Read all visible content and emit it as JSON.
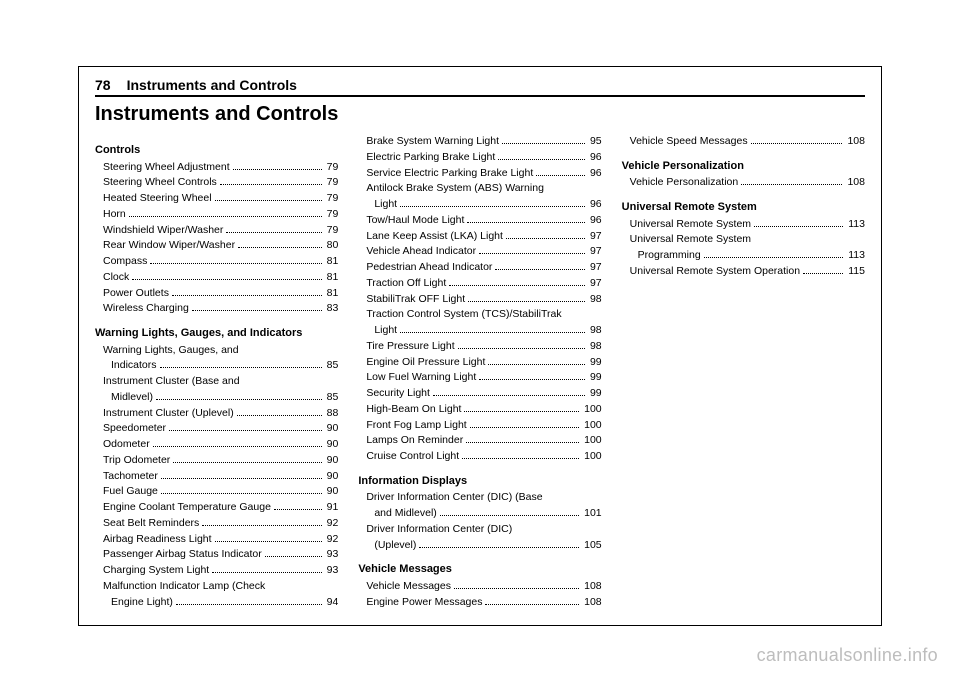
{
  "page_number": "78",
  "header_title": "Instruments and Controls",
  "chapter_title": "Instruments and Controls",
  "watermark": "carmanualsonline.info",
  "colors": {
    "text": "#000000",
    "bg": "#ffffff",
    "watermark": "#bdbdbd"
  },
  "sections": [
    {
      "head": "Controls",
      "items": [
        {
          "label": [
            "Steering Wheel Adjustment"
          ],
          "page": "79"
        },
        {
          "label": [
            "Steering Wheel Controls"
          ],
          "page": "79"
        },
        {
          "label": [
            "Heated Steering Wheel"
          ],
          "page": "79"
        },
        {
          "label": [
            "Horn"
          ],
          "page": "79"
        },
        {
          "label": [
            "Windshield Wiper/Washer"
          ],
          "page": "79"
        },
        {
          "label": [
            "Rear Window Wiper/Washer"
          ],
          "page": "80"
        },
        {
          "label": [
            "Compass"
          ],
          "page": "81"
        },
        {
          "label": [
            "Clock"
          ],
          "page": "81"
        },
        {
          "label": [
            "Power Outlets"
          ],
          "page": "81"
        },
        {
          "label": [
            "Wireless Charging"
          ],
          "page": "83"
        }
      ]
    },
    {
      "head": "Warning Lights, Gauges, and Indicators",
      "items": [
        {
          "label": [
            "Warning Lights, Gauges, and",
            "Indicators"
          ],
          "page": "85"
        },
        {
          "label": [
            "Instrument Cluster (Base and",
            "Midlevel)"
          ],
          "page": "85"
        },
        {
          "label": [
            "Instrument Cluster (Uplevel)"
          ],
          "page": "88"
        },
        {
          "label": [
            "Speedometer"
          ],
          "page": "90"
        },
        {
          "label": [
            "Odometer"
          ],
          "page": "90"
        },
        {
          "label": [
            "Trip Odometer"
          ],
          "page": "90"
        },
        {
          "label": [
            "Tachometer"
          ],
          "page": "90"
        },
        {
          "label": [
            "Fuel Gauge"
          ],
          "page": "90"
        },
        {
          "label": [
            "Engine Coolant Temperature Gauge"
          ],
          "page": "91"
        },
        {
          "label": [
            "Seat Belt Reminders"
          ],
          "page": "92"
        },
        {
          "label": [
            "Airbag Readiness Light"
          ],
          "page": "92"
        },
        {
          "label": [
            "Passenger Airbag Status Indicator"
          ],
          "page": "93"
        },
        {
          "label": [
            "Charging System Light"
          ],
          "page": "93"
        },
        {
          "label": [
            "Malfunction Indicator Lamp (Check",
            "Engine Light)"
          ],
          "page": "94"
        },
        {
          "label": [
            "Brake System Warning Light"
          ],
          "page": "95"
        },
        {
          "label": [
            "Electric Parking Brake Light"
          ],
          "page": "96"
        },
        {
          "label": [
            "Service Electric Parking Brake Light"
          ],
          "page": "96"
        },
        {
          "label": [
            "Antilock Brake System (ABS) Warning",
            "Light"
          ],
          "page": "96"
        },
        {
          "label": [
            "Tow/Haul Mode Light"
          ],
          "page": "96"
        },
        {
          "label": [
            "Lane Keep Assist (LKA) Light"
          ],
          "page": "97"
        },
        {
          "label": [
            "Vehicle Ahead Indicator"
          ],
          "page": "97"
        },
        {
          "label": [
            "Pedestrian Ahead Indicator"
          ],
          "page": "97"
        },
        {
          "label": [
            "Traction Off Light"
          ],
          "page": "97"
        },
        {
          "label": [
            "StabiliTrak OFF Light"
          ],
          "page": "98"
        },
        {
          "label": [
            "Traction Control System (TCS)/StabiliTrak",
            "Light"
          ],
          "page": "98"
        },
        {
          "label": [
            "Tire Pressure Light"
          ],
          "page": "98"
        },
        {
          "label": [
            "Engine Oil Pressure Light"
          ],
          "page": "99"
        },
        {
          "label": [
            "Low Fuel Warning Light"
          ],
          "page": "99"
        },
        {
          "label": [
            "Security Light"
          ],
          "page": "99"
        },
        {
          "label": [
            "High-Beam On Light"
          ],
          "page": "100"
        },
        {
          "label": [
            "Front Fog Lamp Light"
          ],
          "page": "100"
        },
        {
          "label": [
            "Lamps On Reminder"
          ],
          "page": "100"
        },
        {
          "label": [
            "Cruise Control Light"
          ],
          "page": "100"
        }
      ]
    },
    {
      "head": "Information Displays",
      "items": [
        {
          "label": [
            "Driver Information Center (DIC) (Base",
            "and Midlevel)"
          ],
          "page": "101"
        },
        {
          "label": [
            "Driver Information Center (DIC)",
            "(Uplevel)"
          ],
          "page": "105"
        }
      ]
    },
    {
      "head": "Vehicle Messages",
      "items": [
        {
          "label": [
            "Vehicle Messages"
          ],
          "page": "108"
        },
        {
          "label": [
            "Engine Power Messages"
          ],
          "page": "108"
        },
        {
          "label": [
            "Vehicle Speed Messages"
          ],
          "page": "108"
        }
      ]
    },
    {
      "head": "Vehicle Personalization",
      "items": [
        {
          "label": [
            "Vehicle Personalization"
          ],
          "page": "108"
        }
      ]
    },
    {
      "head": "Universal Remote System",
      "items": [
        {
          "label": [
            "Universal Remote System"
          ],
          "page": "113"
        },
        {
          "label": [
            "Universal Remote System",
            "Programming"
          ],
          "page": "113"
        },
        {
          "label": [
            "Universal Remote System Operation"
          ],
          "page": "115"
        }
      ]
    }
  ]
}
